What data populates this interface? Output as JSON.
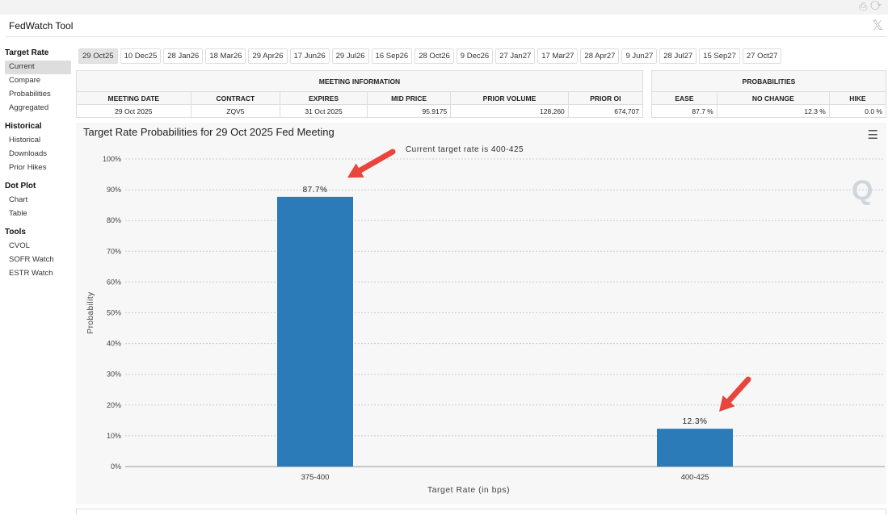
{
  "window": {
    "title": "FedWatch Tool"
  },
  "sidebar": {
    "sections": [
      {
        "title": "Target Rate",
        "items": [
          "Current",
          "Compare",
          "Probabilities",
          "Aggregated"
        ]
      },
      {
        "title": "Historical",
        "items": [
          "Historical",
          "Downloads",
          "Prior Hikes"
        ]
      },
      {
        "title": "Dot Plot",
        "items": [
          "Chart",
          "Table"
        ]
      },
      {
        "title": "Tools",
        "items": [
          "CVOL",
          "SOFR Watch",
          "ESTR Watch"
        ]
      }
    ],
    "active": "Current"
  },
  "tabs": [
    "29 Oct25",
    "10 Dec25",
    "28 Jan26",
    "18 Mar26",
    "29 Apr26",
    "17 Jun26",
    "29 Jul26",
    "16 Sep26",
    "28 Oct26",
    "9 Dec26",
    "27 Jan27",
    "17 Mar27",
    "28 Apr27",
    "9 Jun27",
    "28 Jul27",
    "15 Sep27",
    "27 Oct27"
  ],
  "meeting_info": {
    "header": "MEETING INFORMATION",
    "columns": [
      "MEETING DATE",
      "CONTRACT",
      "EXPIRES",
      "MID PRICE",
      "PRIOR VOLUME",
      "PRIOR OI"
    ],
    "row": [
      "29 Oct 2025",
      "ZQV5",
      "31 Oct 2025",
      "95.9175",
      "128,260",
      "674,707"
    ]
  },
  "probabilities": {
    "header": "PROBABILITIES",
    "columns": [
      "EASE",
      "NO CHANGE",
      "HIKE"
    ],
    "row": [
      "87.7 %",
      "12.3 %",
      "0.0 %"
    ]
  },
  "chart_data": {
    "type": "bar",
    "title": "Target Rate Probabilities for 29 Oct 2025 Fed Meeting",
    "subtitle": "Current target rate is 400-425",
    "xlabel": "Target Rate (in bps)",
    "ylabel": "Probability",
    "categories": [
      "375-400",
      "400-425"
    ],
    "values": [
      87.7,
      12.3
    ],
    "data_labels": [
      "87.7%",
      "12.3%"
    ],
    "ylim": [
      0,
      100
    ],
    "yticks": [
      "0%",
      "10%",
      "20%",
      "30%",
      "40%",
      "50%",
      "60%",
      "70%",
      "80%",
      "90%",
      "100%"
    ],
    "grid": true,
    "bar_color": "#2b7bb9",
    "annotation_color": "#e8453c"
  }
}
